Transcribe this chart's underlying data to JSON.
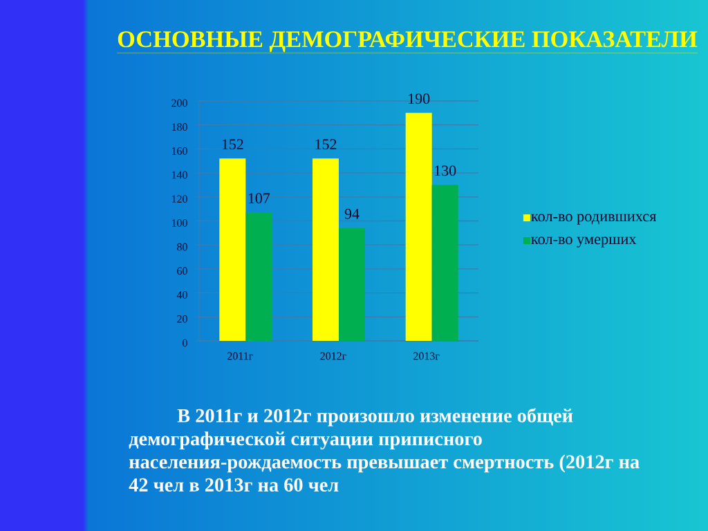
{
  "chart_data": {
    "type": "bar",
    "title": "ОСНОВНЫЕ ДЕМОГРАФИЧЕСКИЕ ПОКАЗАТЕЛИ",
    "categories": [
      "2011г",
      "2012г",
      "2013г"
    ],
    "series": [
      {
        "name": "кол-во родившихся",
        "color": "#ffff00",
        "values": [
          152,
          152,
          190
        ]
      },
      {
        "name": "кол-во умерших",
        "color": "#00b050",
        "values": [
          107,
          94,
          130
        ]
      }
    ],
    "ylim": [
      0,
      200
    ],
    "yticks": [
      0,
      20,
      40,
      60,
      80,
      100,
      120,
      140,
      160,
      180,
      200
    ],
    "grid": "y",
    "legend": "right",
    "data_labels": true,
    "annotations": [
      "В 2011г и 2012г произошло изменение общей демографической ситуации приписного населения-рождаемость превышает смертность   (2012г  на 42 чел в 2013г  на 60 чел"
    ]
  }
}
